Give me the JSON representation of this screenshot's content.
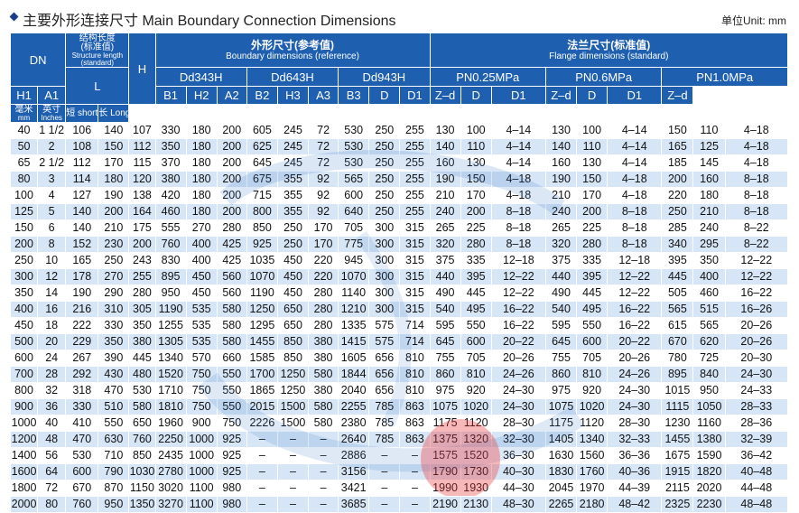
{
  "header": {
    "title": "主要外形连接尺寸  Main Boundary Connection Dimensions",
    "unit": "单位Unit: mm"
  },
  "columns": {
    "dn": "DN",
    "dn_mm_zh": "毫米",
    "dn_mm_en": "mm",
    "dn_in_zh": "英寸",
    "dn_in_en": "Inches",
    "struct_zh": "结构长度",
    "struct_zh2": "(标准值)",
    "struct_en": "Structure length",
    "struct_en2": "(standard)",
    "L": "L",
    "short": "短 short",
    "long": "长 Long",
    "H": "H",
    "boundary_zh": "外形尺寸(参考值)",
    "boundary_en": "Boundary dimensions (reference)",
    "flange_zh": "法兰尺寸(标准值)",
    "flange_en": "Flange dimensions (standard)",
    "dd343": "Dd343H",
    "dd643": "Dd643H",
    "dd943": "Dd943H",
    "pn025": "PN0.25MPa",
    "pn06": "PN0.6MPa",
    "pn10": "PN1.0MPa",
    "H1": "H1",
    "A1": "A1",
    "B1": "B1",
    "H2": "H2",
    "A2": "A2",
    "B2": "B2",
    "H3": "H3",
    "A3": "A3",
    "B3": "B3",
    "D": "D",
    "D1": "D1",
    "Zd": "Z–d"
  },
  "rows": [
    [
      "40",
      "1 1/2",
      "106",
      "140",
      "107",
      "330",
      "180",
      "200",
      "605",
      "245",
      "72",
      "530",
      "250",
      "255",
      "130",
      "100",
      "4–14",
      "130",
      "100",
      "4–14",
      "150",
      "110",
      "4–18"
    ],
    [
      "50",
      "2",
      "108",
      "150",
      "112",
      "350",
      "180",
      "200",
      "625",
      "245",
      "72",
      "530",
      "250",
      "255",
      "140",
      "110",
      "4–14",
      "140",
      "110",
      "4–14",
      "165",
      "125",
      "4–18"
    ],
    [
      "65",
      "2 1/2",
      "112",
      "170",
      "115",
      "370",
      "180",
      "200",
      "645",
      "245",
      "72",
      "530",
      "250",
      "255",
      "160",
      "130",
      "4–14",
      "160",
      "130",
      "4–14",
      "185",
      "145",
      "4–18"
    ],
    [
      "80",
      "3",
      "114",
      "180",
      "120",
      "380",
      "180",
      "200",
      "675",
      "355",
      "92",
      "565",
      "250",
      "255",
      "190",
      "150",
      "4–18",
      "190",
      "150",
      "4–18",
      "200",
      "160",
      "8–18"
    ],
    [
      "100",
      "4",
      "127",
      "190",
      "138",
      "420",
      "180",
      "200",
      "715",
      "355",
      "92",
      "600",
      "250",
      "255",
      "210",
      "170",
      "4–18",
      "210",
      "170",
      "4–18",
      "220",
      "180",
      "8–18"
    ],
    [
      "125",
      "5",
      "140",
      "200",
      "164",
      "460",
      "180",
      "200",
      "800",
      "355",
      "92",
      "640",
      "250",
      "255",
      "240",
      "200",
      "8–18",
      "240",
      "200",
      "8–18",
      "250",
      "210",
      "8–18"
    ],
    [
      "150",
      "6",
      "140",
      "210",
      "175",
      "555",
      "270",
      "280",
      "850",
      "250",
      "170",
      "705",
      "300",
      "315",
      "265",
      "225",
      "8–18",
      "265",
      "225",
      "8–18",
      "285",
      "240",
      "8–22"
    ],
    [
      "200",
      "8",
      "152",
      "230",
      "200",
      "760",
      "400",
      "425",
      "925",
      "250",
      "170",
      "775",
      "300",
      "315",
      "320",
      "280",
      "8–18",
      "320",
      "280",
      "8–18",
      "340",
      "295",
      "8–22"
    ],
    [
      "250",
      "10",
      "165",
      "250",
      "243",
      "830",
      "400",
      "425",
      "1035",
      "450",
      "220",
      "945",
      "300",
      "315",
      "375",
      "335",
      "12–18",
      "375",
      "335",
      "12–18",
      "395",
      "350",
      "12–22"
    ],
    [
      "300",
      "12",
      "178",
      "270",
      "255",
      "895",
      "450",
      "560",
      "1070",
      "450",
      "220",
      "1070",
      "300",
      "315",
      "440",
      "395",
      "12–22",
      "440",
      "395",
      "12–22",
      "445",
      "400",
      "12–22"
    ],
    [
      "350",
      "14",
      "190",
      "290",
      "280",
      "950",
      "450",
      "560",
      "1190",
      "450",
      "280",
      "1140",
      "300",
      "315",
      "490",
      "445",
      "12–22",
      "490",
      "445",
      "12–22",
      "505",
      "460",
      "16–22"
    ],
    [
      "400",
      "16",
      "216",
      "310",
      "305",
      "1190",
      "535",
      "580",
      "1250",
      "650",
      "280",
      "1210",
      "300",
      "315",
      "540",
      "495",
      "16–22",
      "540",
      "495",
      "16–22",
      "565",
      "515",
      "16–26"
    ],
    [
      "450",
      "18",
      "222",
      "330",
      "350",
      "1255",
      "535",
      "580",
      "1295",
      "650",
      "280",
      "1335",
      "575",
      "714",
      "595",
      "550",
      "16–22",
      "595",
      "550",
      "16–22",
      "615",
      "565",
      "20–26"
    ],
    [
      "500",
      "20",
      "229",
      "350",
      "380",
      "1305",
      "535",
      "580",
      "1455",
      "850",
      "380",
      "1415",
      "575",
      "714",
      "645",
      "600",
      "20–22",
      "645",
      "600",
      "20–22",
      "670",
      "620",
      "20–26"
    ],
    [
      "600",
      "24",
      "267",
      "390",
      "445",
      "1340",
      "570",
      "660",
      "1585",
      "850",
      "380",
      "1605",
      "656",
      "810",
      "755",
      "705",
      "20–26",
      "755",
      "705",
      "20–26",
      "780",
      "725",
      "20–30"
    ],
    [
      "700",
      "28",
      "292",
      "430",
      "480",
      "1520",
      "750",
      "550",
      "1700",
      "1250",
      "580",
      "1844",
      "656",
      "810",
      "860",
      "810",
      "24–26",
      "860",
      "810",
      "24–26",
      "895",
      "840",
      "24–30"
    ],
    [
      "800",
      "32",
      "318",
      "470",
      "530",
      "1710",
      "750",
      "550",
      "1865",
      "1250",
      "380",
      "2040",
      "656",
      "810",
      "975",
      "920",
      "24–30",
      "975",
      "920",
      "24–30",
      "1015",
      "950",
      "24–33"
    ],
    [
      "900",
      "36",
      "330",
      "510",
      "580",
      "1810",
      "750",
      "550",
      "2015",
      "1500",
      "580",
      "2255",
      "785",
      "863",
      "1075",
      "1020",
      "24–30",
      "1075",
      "1020",
      "24–30",
      "1115",
      "1050",
      "28–33"
    ],
    [
      "1000",
      "40",
      "410",
      "550",
      "650",
      "1960",
      "900",
      "750",
      "2226",
      "1500",
      "580",
      "2380",
      "785",
      "863",
      "1175",
      "1120",
      "28–30",
      "1175",
      "1120",
      "28–30",
      "1230",
      "1160",
      "28–36"
    ],
    [
      "1200",
      "48",
      "470",
      "630",
      "760",
      "2250",
      "1000",
      "925",
      "–",
      "–",
      "–",
      "2640",
      "785",
      "863",
      "1375",
      "1320",
      "32–30",
      "1405",
      "1340",
      "32–33",
      "1455",
      "1380",
      "32–39"
    ],
    [
      "1400",
      "56",
      "530",
      "710",
      "850",
      "2435",
      "1000",
      "925",
      "–",
      "–",
      "–",
      "2886",
      "–",
      "–",
      "1575",
      "1520",
      "36–30",
      "1630",
      "1560",
      "36–36",
      "1675",
      "1590",
      "36–42"
    ],
    [
      "1600",
      "64",
      "600",
      "790",
      "1030",
      "2780",
      "1000",
      "925",
      "–",
      "–",
      "–",
      "3156",
      "–",
      "–",
      "1790",
      "1730",
      "40–30",
      "1830",
      "1760",
      "40–36",
      "1915",
      "1820",
      "40–48"
    ],
    [
      "1800",
      "72",
      "670",
      "870",
      "1150",
      "3020",
      "1100",
      "980",
      "–",
      "–",
      "–",
      "3421",
      "–",
      "–",
      "1990",
      "1930",
      "44–30",
      "2045",
      "1970",
      "44–39",
      "2115",
      "2020",
      "44–48"
    ],
    [
      "2000",
      "80",
      "760",
      "950",
      "1350",
      "3270",
      "1100",
      "980",
      "–",
      "–",
      "–",
      "3685",
      "–",
      "–",
      "2190",
      "2130",
      "48–30",
      "2265",
      "2180",
      "48–42",
      "2325",
      "2230",
      "48–48"
    ]
  ]
}
